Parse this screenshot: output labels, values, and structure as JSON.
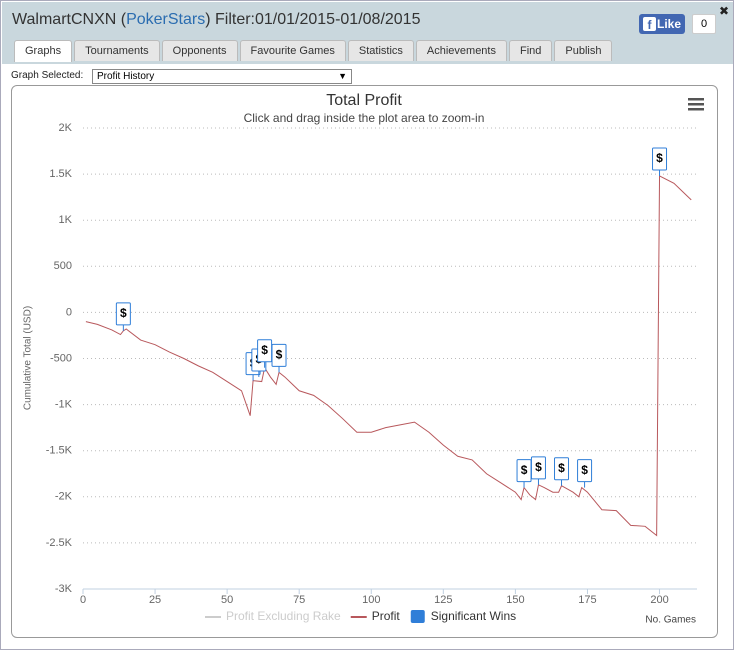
{
  "header": {
    "title_prefix": "WalmartCNXN (",
    "site": "PokerStars",
    "title_suffix": ") Filter:01/01/2015-01/08/2015",
    "like": "Like",
    "like_count": 0
  },
  "tabs": [
    "Graphs",
    "Tournaments",
    "Opponents",
    "Favourite Games",
    "Statistics",
    "Achievements",
    "Find",
    "Publish"
  ],
  "active_tab": 0,
  "graph_selector": {
    "label": "Graph Selected:",
    "value": "Profit History"
  },
  "chart_data": {
    "type": "line",
    "title": "Total Profit",
    "subtitle": "Click and drag inside the plot area to zoom-in",
    "y_label": "Cumulative Total (USD)",
    "x_label": "No. Games",
    "xlim": [
      0,
      213
    ],
    "xticks": [
      0,
      25,
      50,
      75,
      100,
      125,
      150,
      175,
      200
    ],
    "ylim": [
      -3000,
      2000
    ],
    "yticks": [
      {
        "value": 2000,
        "label": "2K"
      },
      {
        "value": 1500,
        "label": "1.5K"
      },
      {
        "value": 1000,
        "label": "1K"
      },
      500,
      0,
      -500,
      {
        "value": -1000,
        "label": "-1K"
      },
      {
        "value": -1500,
        "label": "-1.5K"
      },
      {
        "value": -2000,
        "label": "-2K"
      },
      {
        "value": -2500,
        "label": "-2.5K"
      },
      {
        "value": -3000,
        "label": "-3K"
      }
    ],
    "grid": true,
    "series": [
      {
        "name": "Profit Excluding Rake",
        "color": "#cccccc",
        "visible": false
      },
      {
        "name": "Profit",
        "color": "#b8585c",
        "visible": true,
        "x": [
          1,
          5,
          10,
          13,
          14,
          15,
          20,
          25,
          30,
          35,
          40,
          45,
          50,
          55,
          58,
          59,
          62,
          63,
          65,
          67,
          68,
          70,
          75,
          80,
          85,
          90,
          95,
          100,
          105,
          110,
          115,
          120,
          125,
          130,
          135,
          140,
          145,
          150,
          152,
          153,
          155,
          157,
          158,
          160,
          163,
          165,
          166,
          170,
          172,
          173,
          175,
          180,
          185,
          190,
          195,
          199,
          200,
          205,
          210,
          211
        ],
        "values": [
          -100,
          -130,
          -190,
          -240,
          -200,
          -180,
          -300,
          -350,
          -430,
          -500,
          -580,
          -650,
          -750,
          -850,
          -1120,
          -740,
          -750,
          -600,
          -700,
          -780,
          -650,
          -700,
          -850,
          -900,
          -1010,
          -1150,
          -1300,
          -1300,
          -1250,
          -1220,
          -1190,
          -1300,
          -1440,
          -1560,
          -1600,
          -1750,
          -1850,
          -1950,
          -2030,
          -1900,
          -1980,
          -2030,
          -1870,
          -1900,
          -1950,
          -1950,
          -1880,
          -1950,
          -2000,
          -1900,
          -1950,
          -2140,
          -2150,
          -2310,
          -2320,
          -2420,
          1480,
          1400,
          1250,
          1220
        ]
      }
    ],
    "significant_wins": {
      "name": "Significant Wins",
      "color": "#2f7ed8",
      "marker_label": "$",
      "x": [
        14,
        59,
        61,
        63,
        68,
        153,
        158,
        166,
        174,
        200
      ],
      "values": [
        -200,
        -740,
        -700,
        -600,
        -650,
        -1900,
        -1870,
        -1880,
        -1900,
        1480
      ]
    }
  }
}
